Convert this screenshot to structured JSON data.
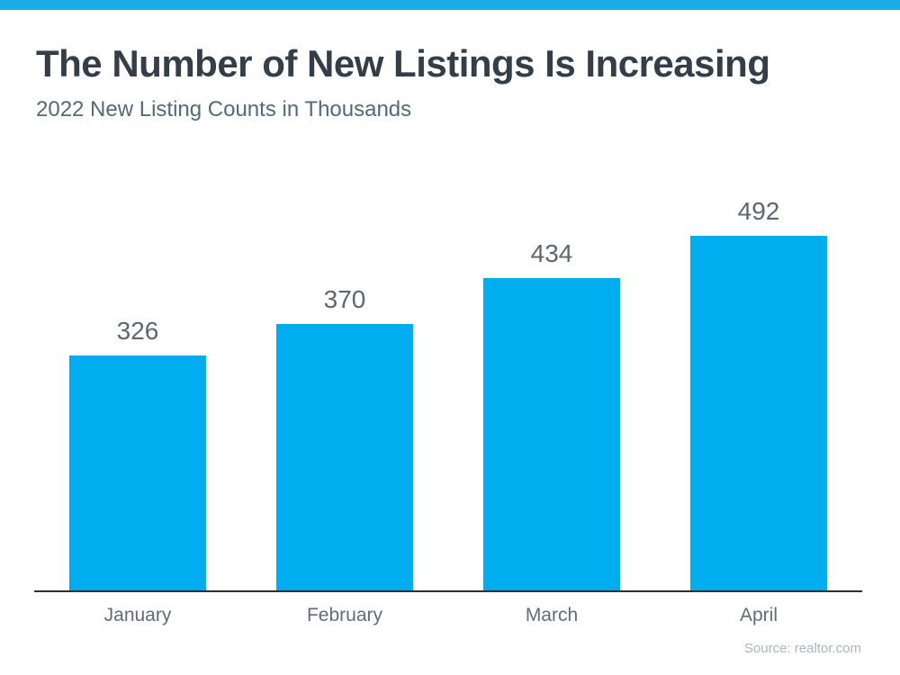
{
  "page": {
    "accent_color": "#18abe8"
  },
  "header": {
    "title": "The Number of New Listings Is Increasing",
    "subtitle": "2022 New Listing Counts in Thousands"
  },
  "footer": {
    "source": "Source: realtor.com"
  },
  "chart_data": {
    "type": "bar",
    "title": "The Number of New Listings Is Increasing",
    "subtitle": "2022 New Listing Counts in Thousands",
    "categories": [
      "January",
      "February",
      "March",
      "April"
    ],
    "values": [
      326,
      370,
      434,
      492
    ],
    "units": "thousands of new listings",
    "ylim": [
      0,
      610
    ],
    "grid": false,
    "legend": false,
    "bar_color": "#00aeef",
    "value_label_color": "#5b6874",
    "axis_label_color": "#5f6c7b",
    "source": "Source: realtor.com"
  }
}
